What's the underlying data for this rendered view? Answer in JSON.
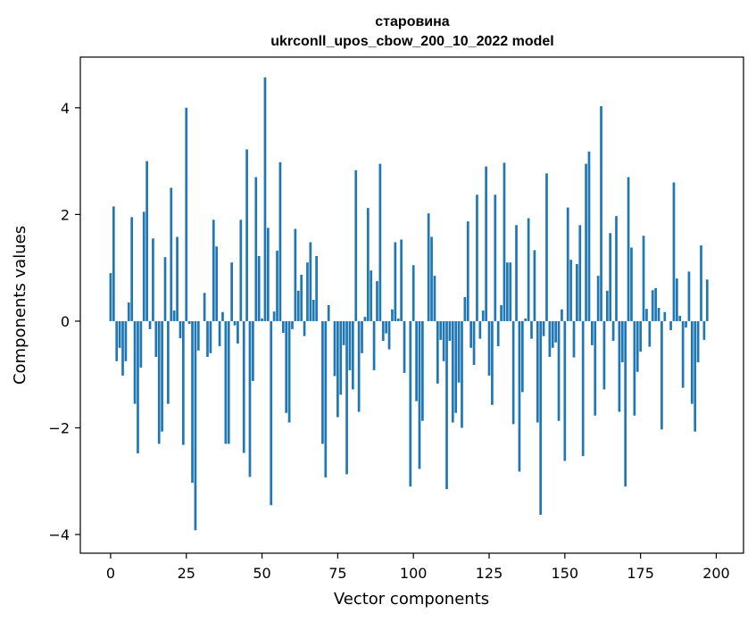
{
  "chart_data": {
    "type": "bar",
    "title": "старовина",
    "subtitle": "ukrconll_upos_cbow_200_10_2022 model",
    "xlabel": "Vector components",
    "ylabel": "Components values",
    "xlim": [
      -10,
      209
    ],
    "ylim": [
      -4.35,
      4.95
    ],
    "xticks": [
      0,
      25,
      50,
      75,
      100,
      125,
      150,
      175,
      200
    ],
    "yticks": [
      -4,
      -2,
      0,
      2,
      4
    ],
    "ytick_labels": [
      "−4",
      "−2",
      "0",
      "2",
      "4"
    ],
    "grid": false,
    "bar_color": "#1f77b4",
    "values": [
      0.9,
      2.15,
      -0.75,
      -0.5,
      -1.02,
      -0.75,
      0.35,
      1.95,
      -1.55,
      -2.48,
      -0.87,
      2.05,
      3.0,
      -0.15,
      1.55,
      -0.67,
      -2.3,
      -2.07,
      1.2,
      -1.55,
      2.5,
      0.2,
      1.58,
      -0.32,
      -2.32,
      4.0,
      -0.05,
      -3.03,
      -3.92,
      -0.55,
      0.0,
      0.53,
      -0.67,
      -0.6,
      1.9,
      1.4,
      -0.47,
      0.17,
      -2.3,
      -2.3,
      1.1,
      -0.08,
      -0.42,
      1.9,
      -2.47,
      3.22,
      -2.92,
      -1.12,
      2.7,
      1.22,
      0.05,
      4.57,
      1.75,
      -3.45,
      0.18,
      1.32,
      2.98,
      -0.22,
      -1.72,
      -1.9,
      -0.15,
      1.73,
      0.57,
      0.87,
      -0.28,
      1.1,
      1.48,
      0.4,
      1.22,
      0.0,
      -2.3,
      -2.93,
      0.3,
      0.0,
      -1.03,
      -1.8,
      -1.38,
      -0.45,
      -2.87,
      -0.92,
      -1.28,
      2.83,
      -1.7,
      -0.6,
      0.08,
      2.12,
      0.95,
      -0.92,
      0.75,
      2.95,
      -0.37,
      -0.23,
      -0.53,
      0.22,
      1.48,
      0.05,
      1.53,
      -0.97,
      0.0,
      -3.1,
      1.05,
      -1.5,
      -2.77,
      -1.87,
      0.0,
      2.02,
      1.58,
      0.85,
      -1.17,
      -0.35,
      -0.75,
      -3.15,
      -0.37,
      -1.9,
      -1.72,
      -1.15,
      -2.0,
      0.45,
      1.87,
      -0.5,
      -0.82,
      2.37,
      -0.33,
      0.2,
      2.9,
      -1.02,
      -1.57,
      2.37,
      -0.47,
      0.3,
      2.97,
      1.1,
      1.1,
      -1.93,
      1.8,
      -2.82,
      -1.33,
      0.05,
      1.93,
      -0.33,
      1.33,
      -1.9,
      -3.63,
      -0.28,
      2.77,
      -0.67,
      -0.5,
      -0.4,
      -1.87,
      0.22,
      -2.62,
      2.13,
      1.15,
      -0.68,
      1.07,
      1.8,
      -2.53,
      2.95,
      3.18,
      -0.45,
      -1.77,
      0.85,
      4.03,
      -1.28,
      0.57,
      1.65,
      -0.37,
      1.97,
      -1.7,
      -0.77,
      -3.1,
      2.7,
      1.38,
      -1.77,
      -0.95,
      -0.57,
      1.6,
      0.23,
      -0.48,
      0.58,
      0.62,
      0.25,
      -2.03,
      0.17,
      0.0,
      -0.17,
      2.6,
      0.8,
      0.1,
      -1.25,
      -0.12,
      0.93,
      -1.55,
      -2.07,
      -0.77,
      1.42,
      -0.35,
      0.78
    ]
  }
}
